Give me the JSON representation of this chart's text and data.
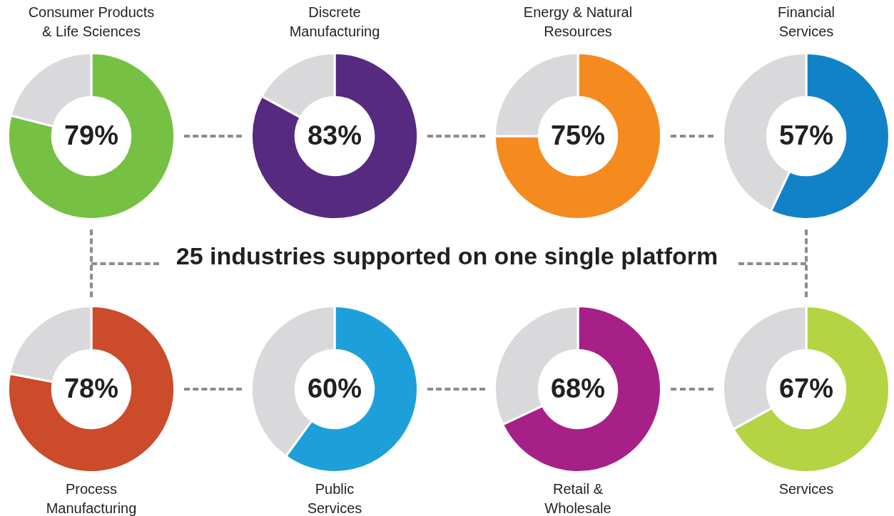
{
  "chart_data": [
    {
      "type": "donut",
      "title": "Consumer Products\n& Life Sciences",
      "categories": [
        null,
        null
      ],
      "values": [
        79,
        21
      ],
      "colors": [
        "#76c043",
        "#d9d9db"
      ],
      "value_labels": [
        "79%",
        null
      ]
    },
    {
      "type": "donut",
      "title": "Discrete\nManufacturing",
      "categories": [
        null,
        null
      ],
      "values": [
        83,
        17
      ],
      "colors": [
        "#552a7f",
        "#d9d9db"
      ],
      "value_labels": [
        "83%",
        null
      ]
    },
    {
      "type": "donut",
      "title": "Energy & Natural\nResources",
      "categories": [
        null,
        null
      ],
      "values": [
        75,
        25
      ],
      "colors": [
        "#f58a1f",
        "#d9d9db"
      ],
      "value_labels": [
        "75%",
        null
      ]
    },
    {
      "type": "donut",
      "title": "Financial\nServices",
      "categories": [
        null,
        null
      ],
      "values": [
        57,
        43
      ],
      "colors": [
        "#1282c8",
        "#d9d9db"
      ],
      "value_labels": [
        "57%",
        null
      ]
    },
    {
      "type": "other",
      "title": "25 industries supported on one single platform"
    },
    {
      "type": "donut",
      "title": "Process\nManufacturing",
      "categories": [
        null,
        null
      ],
      "values": [
        78,
        22
      ],
      "colors": [
        "#cb4b2a",
        "#d9d9db"
      ],
      "value_labels": [
        "78%",
        null
      ]
    },
    {
      "type": "donut",
      "title": "Public\nServices",
      "categories": [
        null,
        null
      ],
      "values": [
        60,
        40
      ],
      "colors": [
        "#1da0d9",
        "#d9d9db"
      ],
      "value_labels": [
        "60%",
        null
      ]
    },
    {
      "type": "donut",
      "title": "Retail &\nWholesale",
      "categories": [
        null,
        null
      ],
      "values": [
        68,
        32
      ],
      "colors": [
        "#a62088",
        "#d9d9db"
      ],
      "value_labels": [
        "68%",
        null
      ]
    },
    {
      "type": "donut",
      "title": "Services",
      "categories": [
        null,
        null
      ],
      "values": [
        67,
        33
      ],
      "colors": [
        "#b4d443",
        "#d9d9db"
      ],
      "value_labels": [
        "67%",
        null
      ]
    }
  ]
}
